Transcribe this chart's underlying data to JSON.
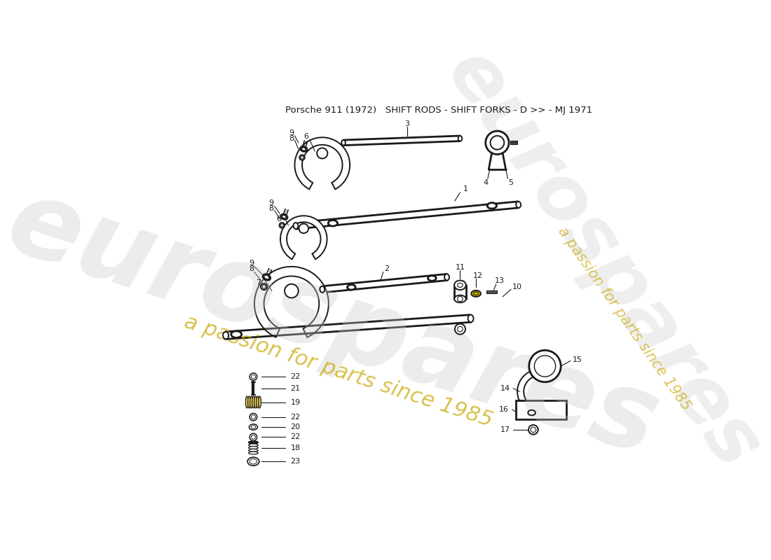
{
  "title": "Porsche 911 (1972)   SHIFT RODS - SHIFT FORKS - D >> - MJ 1971",
  "bg": "#ffffff",
  "lc": "#1a1a1a",
  "wm1": "eurospares",
  "wm2": "a passion for parts since 1985",
  "wm_gray": "#c8c8c8",
  "wm_gold": "#c8a800"
}
